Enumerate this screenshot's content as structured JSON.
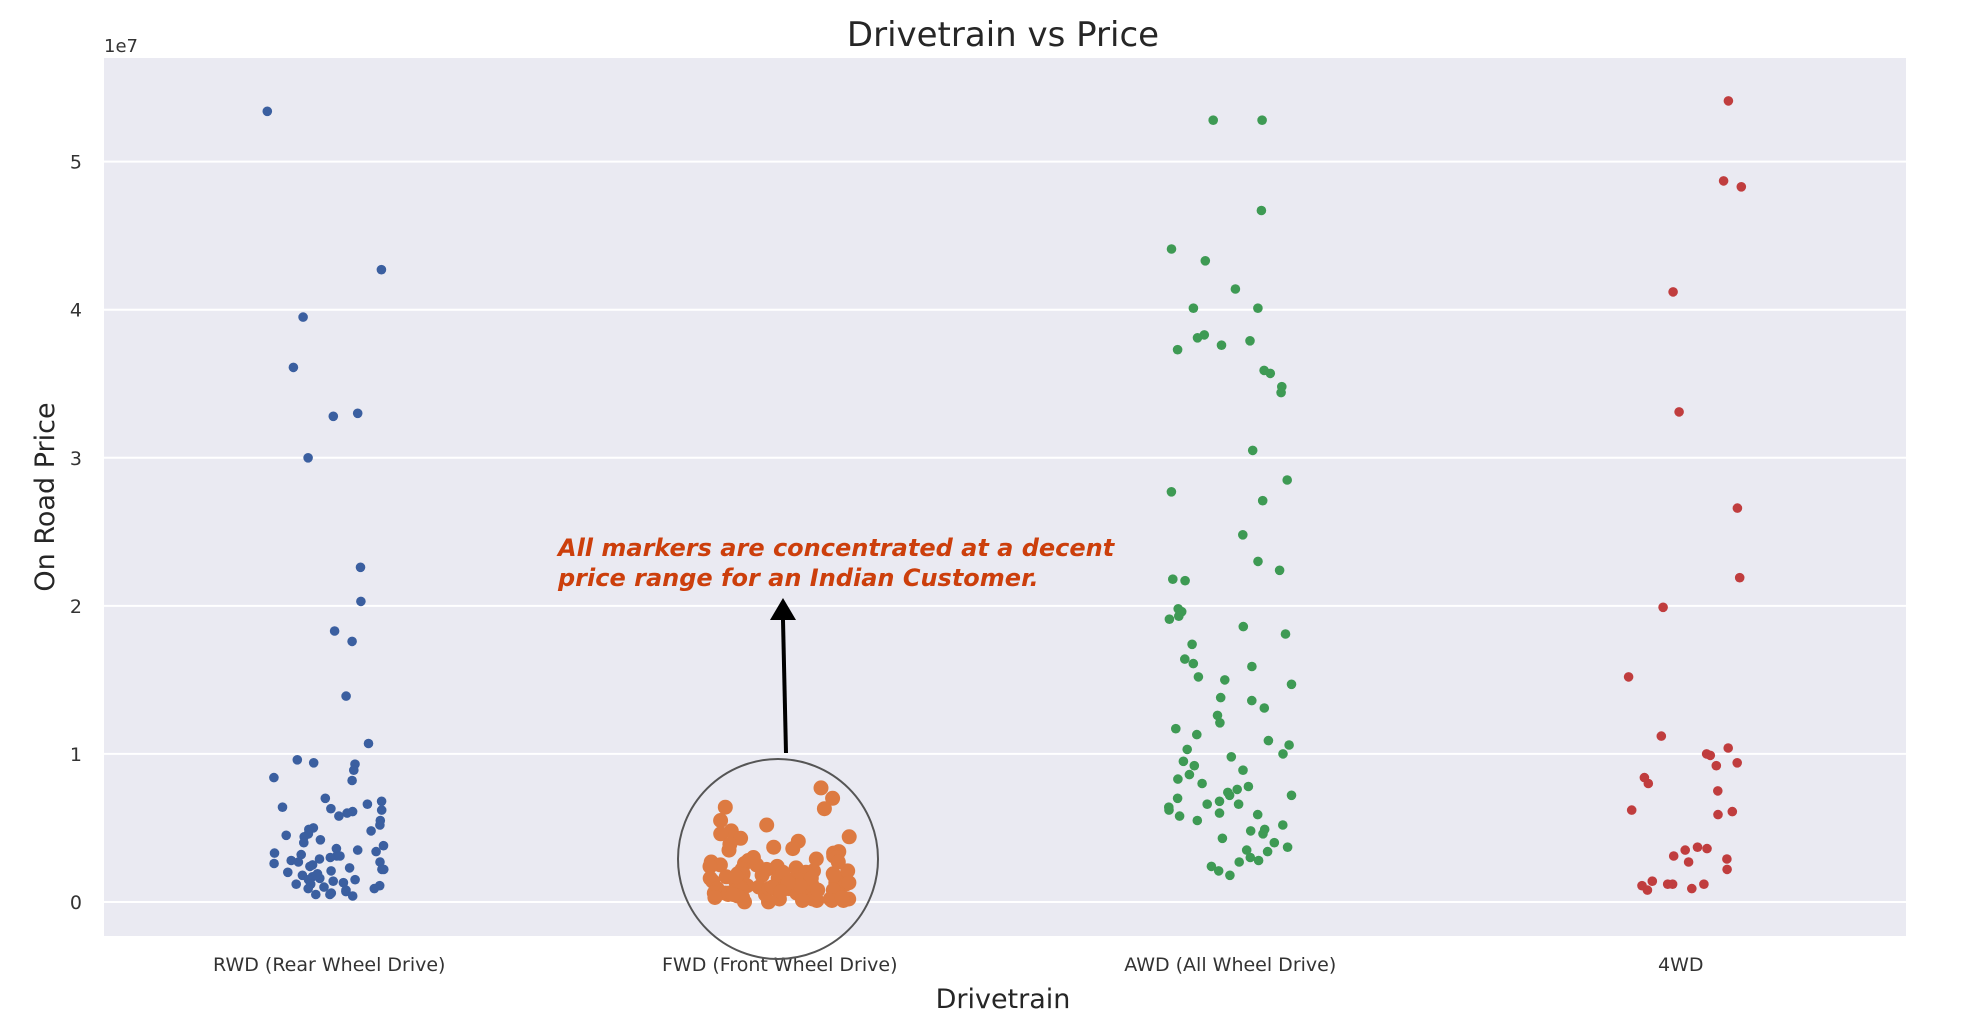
{
  "chart_data": {
    "type": "scatter",
    "subtype": "strip",
    "title": "Drivetrain vs Price",
    "xlabel": "Drivetrain",
    "ylabel": "On Road Price",
    "y_offset_label": "1e7",
    "ylim": [
      -0.23,
      5.7
    ],
    "yticks": [
      0,
      1,
      2,
      3,
      4,
      5
    ],
    "ytick_labels": [
      "0",
      "1",
      "2",
      "3",
      "4",
      "5"
    ],
    "grid": true,
    "legend": false,
    "categories": [
      "RWD (Rear Wheel Drive)",
      "FWD (Front Wheel Drive)",
      "AWD (All Wheel Drive)",
      "4WD"
    ],
    "colors": [
      "#3b5fa0",
      "#dd7a41",
      "#3e9a54",
      "#c03d3e"
    ],
    "series": [
      {
        "values": [
          5.34,
          4.27,
          3.95,
          3.61,
          3.3,
          3.28,
          3.0,
          2.26,
          2.03,
          1.83,
          1.76,
          1.39,
          1.07,
          0.96,
          0.94,
          0.93,
          0.89,
          0.84,
          0.82,
          0.7,
          0.68,
          0.66,
          0.64,
          0.63,
          0.62,
          0.61,
          0.6,
          0.58,
          0.55,
          0.52,
          0.5,
          0.49,
          0.48,
          0.46,
          0.45,
          0.44,
          0.42,
          0.4,
          0.38,
          0.36,
          0.35,
          0.34,
          0.33,
          0.32,
          0.31,
          0.3,
          0.29,
          0.28,
          0.27,
          0.26,
          0.25,
          0.24,
          0.23,
          0.22,
          0.21,
          0.2,
          0.19,
          0.18,
          0.17,
          0.16,
          0.15,
          0.14,
          0.13,
          0.12,
          0.11,
          0.1,
          0.09,
          0.08,
          0.07,
          0.06,
          0.05,
          0.04,
          0.22,
          0.18,
          0.15,
          0.27,
          0.31,
          0.12,
          0.09,
          0.05
        ]
      },
      {
        "values": [
          0.77,
          0.7,
          0.64,
          0.63,
          0.55,
          0.52,
          0.48,
          0.46,
          0.44,
          0.43,
          0.41,
          0.39,
          0.37,
          0.36,
          0.35,
          0.34,
          0.33,
          0.32,
          0.31,
          0.3,
          0.29,
          0.28,
          0.27,
          0.26,
          0.25,
          0.24,
          0.23,
          0.22,
          0.21,
          0.2,
          0.2,
          0.19,
          0.19,
          0.18,
          0.18,
          0.17,
          0.17,
          0.16,
          0.16,
          0.15,
          0.15,
          0.14,
          0.14,
          0.13,
          0.13,
          0.12,
          0.12,
          0.11,
          0.11,
          0.1,
          0.1,
          0.09,
          0.09,
          0.08,
          0.08,
          0.07,
          0.07,
          0.06,
          0.06,
          0.05,
          0.05,
          0.04,
          0.04,
          0.03,
          0.03,
          0.02,
          0.02,
          0.01,
          0.01,
          0.0,
          0.0,
          0.12,
          0.08,
          0.05,
          0.03,
          0.22,
          0.18,
          0.14,
          0.1,
          0.06,
          0.02,
          0.25,
          0.16,
          0.09,
          0.04,
          0.3,
          0.21,
          0.13,
          0.07,
          0.01,
          0.27,
          0.19,
          0.11,
          0.06,
          0.02,
          0.15,
          0.08,
          0.03,
          0.24,
          0.17,
          0.1,
          0.05,
          0.01,
          0.2,
          0.13,
          0.07
        ]
      },
      {
        "values": [
          5.28,
          5.28,
          4.67,
          4.41,
          4.33,
          4.14,
          4.01,
          4.01,
          3.83,
          3.81,
          3.79,
          3.76,
          3.73,
          3.59,
          3.57,
          3.48,
          3.44,
          3.05,
          2.85,
          2.77,
          2.71,
          2.48,
          2.3,
          2.24,
          2.18,
          2.17,
          1.98,
          1.96,
          1.93,
          1.91,
          1.86,
          1.81,
          1.74,
          1.64,
          1.61,
          1.59,
          1.52,
          1.5,
          1.47,
          1.38,
          1.36,
          1.31,
          1.26,
          1.21,
          1.17,
          1.13,
          1.09,
          1.06,
          1.03,
          1.0,
          0.98,
          0.95,
          0.92,
          0.89,
          0.86,
          0.83,
          0.8,
          0.78,
          0.76,
          0.74,
          0.72,
          0.7,
          0.68,
          0.66,
          0.64,
          0.62,
          0.6,
          0.58,
          0.55,
          0.52,
          0.49,
          0.46,
          0.43,
          0.4,
          0.37,
          0.34,
          0.3,
          0.27,
          0.24,
          0.21,
          0.18,
          0.72,
          0.66,
          0.59,
          0.48,
          0.35,
          0.28
        ]
      },
      {
        "values": [
          5.41,
          4.87,
          4.83,
          4.12,
          3.31,
          2.66,
          2.19,
          1.99,
          1.52,
          1.12,
          1.04,
          1.0,
          0.99,
          0.94,
          0.92,
          0.84,
          0.8,
          0.75,
          0.62,
          0.61,
          0.59,
          0.37,
          0.36,
          0.35,
          0.31,
          0.29,
          0.27,
          0.22,
          0.14,
          0.12,
          0.12,
          0.12,
          0.11,
          0.09,
          0.08
        ]
      }
    ],
    "annotations": [
      {
        "text_line1": "All markers are concentrated at a decent",
        "text_line2": "price range for an Indian Customer.",
        "color": "#cc3f0c"
      }
    ]
  }
}
